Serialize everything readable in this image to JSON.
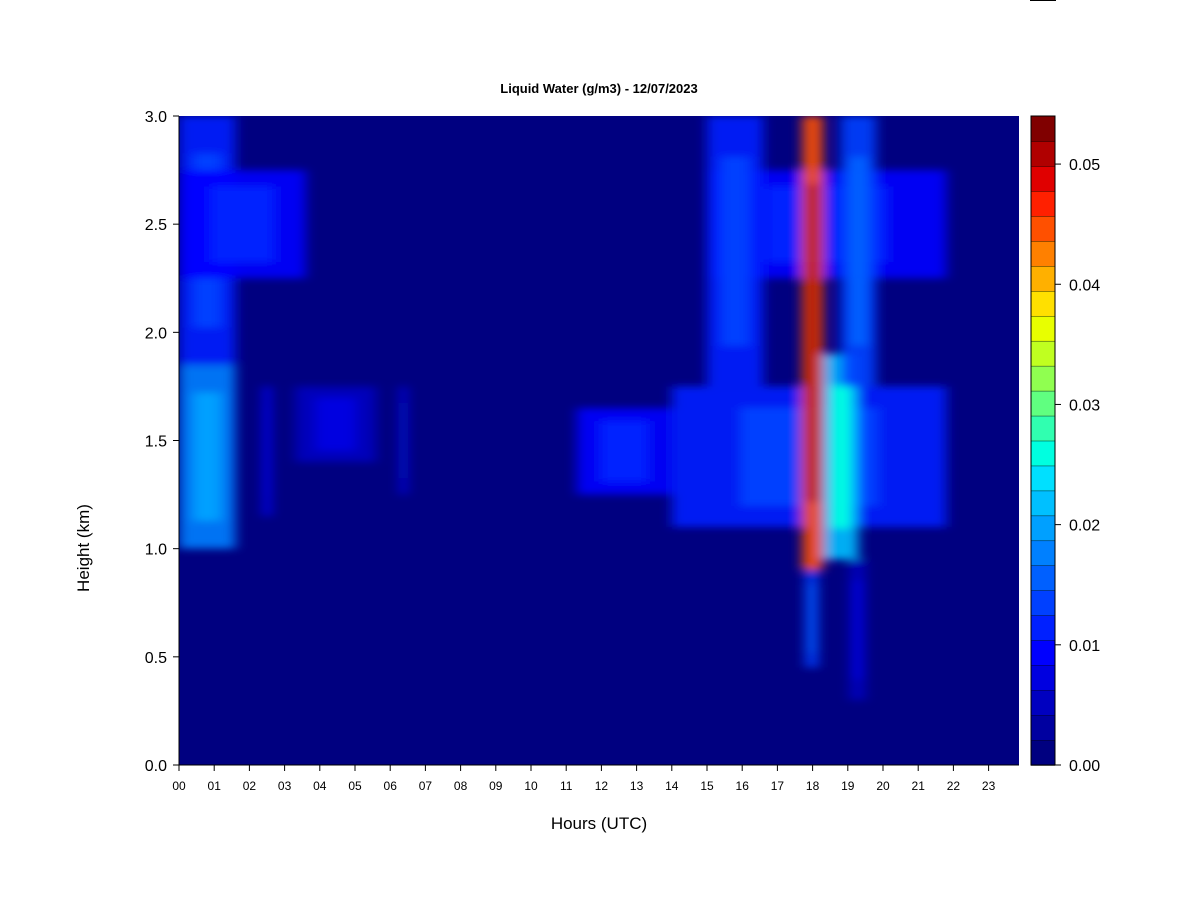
{
  "chart_data": {
    "type": "heatmap",
    "title": "Liquid Water (g/m3) - 12/07/2023",
    "xlabel": "Hours (UTC)",
    "ylabel": "Height (km)",
    "xlim": [
      0,
      24
    ],
    "ylim": [
      0,
      3.0
    ],
    "x_ticks": [
      "00",
      "01",
      "02",
      "03",
      "04",
      "05",
      "06",
      "07",
      "08",
      "09",
      "10",
      "11",
      "12",
      "13",
      "14",
      "15",
      "16",
      "17",
      "18",
      "19",
      "20",
      "21",
      "22",
      "23"
    ],
    "y_ticks": [
      "0.0",
      "0.5",
      "1.0",
      "1.5",
      "2.0",
      "2.5",
      "3.0"
    ],
    "colorbar": {
      "range": [
        0,
        0.054
      ],
      "ticks": [
        "0.00",
        "0.01",
        "0.02",
        "0.03",
        "0.04",
        "0.05"
      ],
      "colors": [
        "#000080",
        "#0000a0",
        "#0000c0",
        "#0000e0",
        "#0000ff",
        "#0020ff",
        "#0040ff",
        "#0060ff",
        "#0080ff",
        "#00a0ff",
        "#00c0ff",
        "#00e0ff",
        "#00ffe0",
        "#30ffb0",
        "#60ff80",
        "#90ff50",
        "#c0ff20",
        "#e8ff00",
        "#ffe000",
        "#ffb000",
        "#ff8000",
        "#ff5000",
        "#ff2000",
        "#e00000",
        "#b00000",
        "#800000"
      ]
    },
    "cloud_features": [
      {
        "hours": [
          0.0,
          1.6
        ],
        "height_km": [
          1.0,
          1.85
        ],
        "peak": 0.017
      },
      {
        "hours": [
          0.0,
          1.6
        ],
        "height_km": [
          1.85,
          3.0
        ],
        "peak": 0.011
      },
      {
        "hours": [
          0.0,
          3.6
        ],
        "height_km": [
          2.25,
          2.75
        ],
        "peak": 0.01
      },
      {
        "hours": [
          2.4,
          2.6
        ],
        "height_km": [
          1.15,
          1.75
        ],
        "peak": 0.009
      },
      {
        "hours": [
          3.3,
          5.6
        ],
        "height_km": [
          1.4,
          1.75
        ],
        "peak": 0.006
      },
      {
        "hours": [
          6.3,
          6.45
        ],
        "height_km": [
          1.25,
          1.75
        ],
        "peak": 0.01
      },
      {
        "hours": [
          11.3,
          14.0
        ],
        "height_km": [
          1.25,
          1.65
        ],
        "peak": 0.01
      },
      {
        "hours": [
          14.0,
          21.8
        ],
        "height_km": [
          1.1,
          1.75
        ],
        "peak": 0.012
      },
      {
        "hours": [
          15.0,
          21.8
        ],
        "height_km": [
          2.25,
          2.75
        ],
        "peak": 0.01
      },
      {
        "hours": [
          15.0,
          16.6
        ],
        "height_km": [
          1.75,
          3.0
        ],
        "peak": 0.011
      },
      {
        "hours": [
          17.7,
          18.3
        ],
        "height_km": [
          0.9,
          3.0
        ],
        "peak": 0.045
      },
      {
        "hours": [
          17.8,
          18.15
        ],
        "height_km": [
          0.45,
          0.9
        ],
        "peak": 0.013
      },
      {
        "hours": [
          18.3,
          19.3
        ],
        "height_km": [
          0.95,
          1.9
        ],
        "peak": 0.022
      },
      {
        "hours": [
          18.8,
          19.8
        ],
        "height_km": [
          1.75,
          3.0
        ],
        "peak": 0.014
      },
      {
        "hours": [
          19.05,
          19.5
        ],
        "height_km": [
          0.3,
          0.95
        ],
        "peak": 0.006
      }
    ]
  }
}
